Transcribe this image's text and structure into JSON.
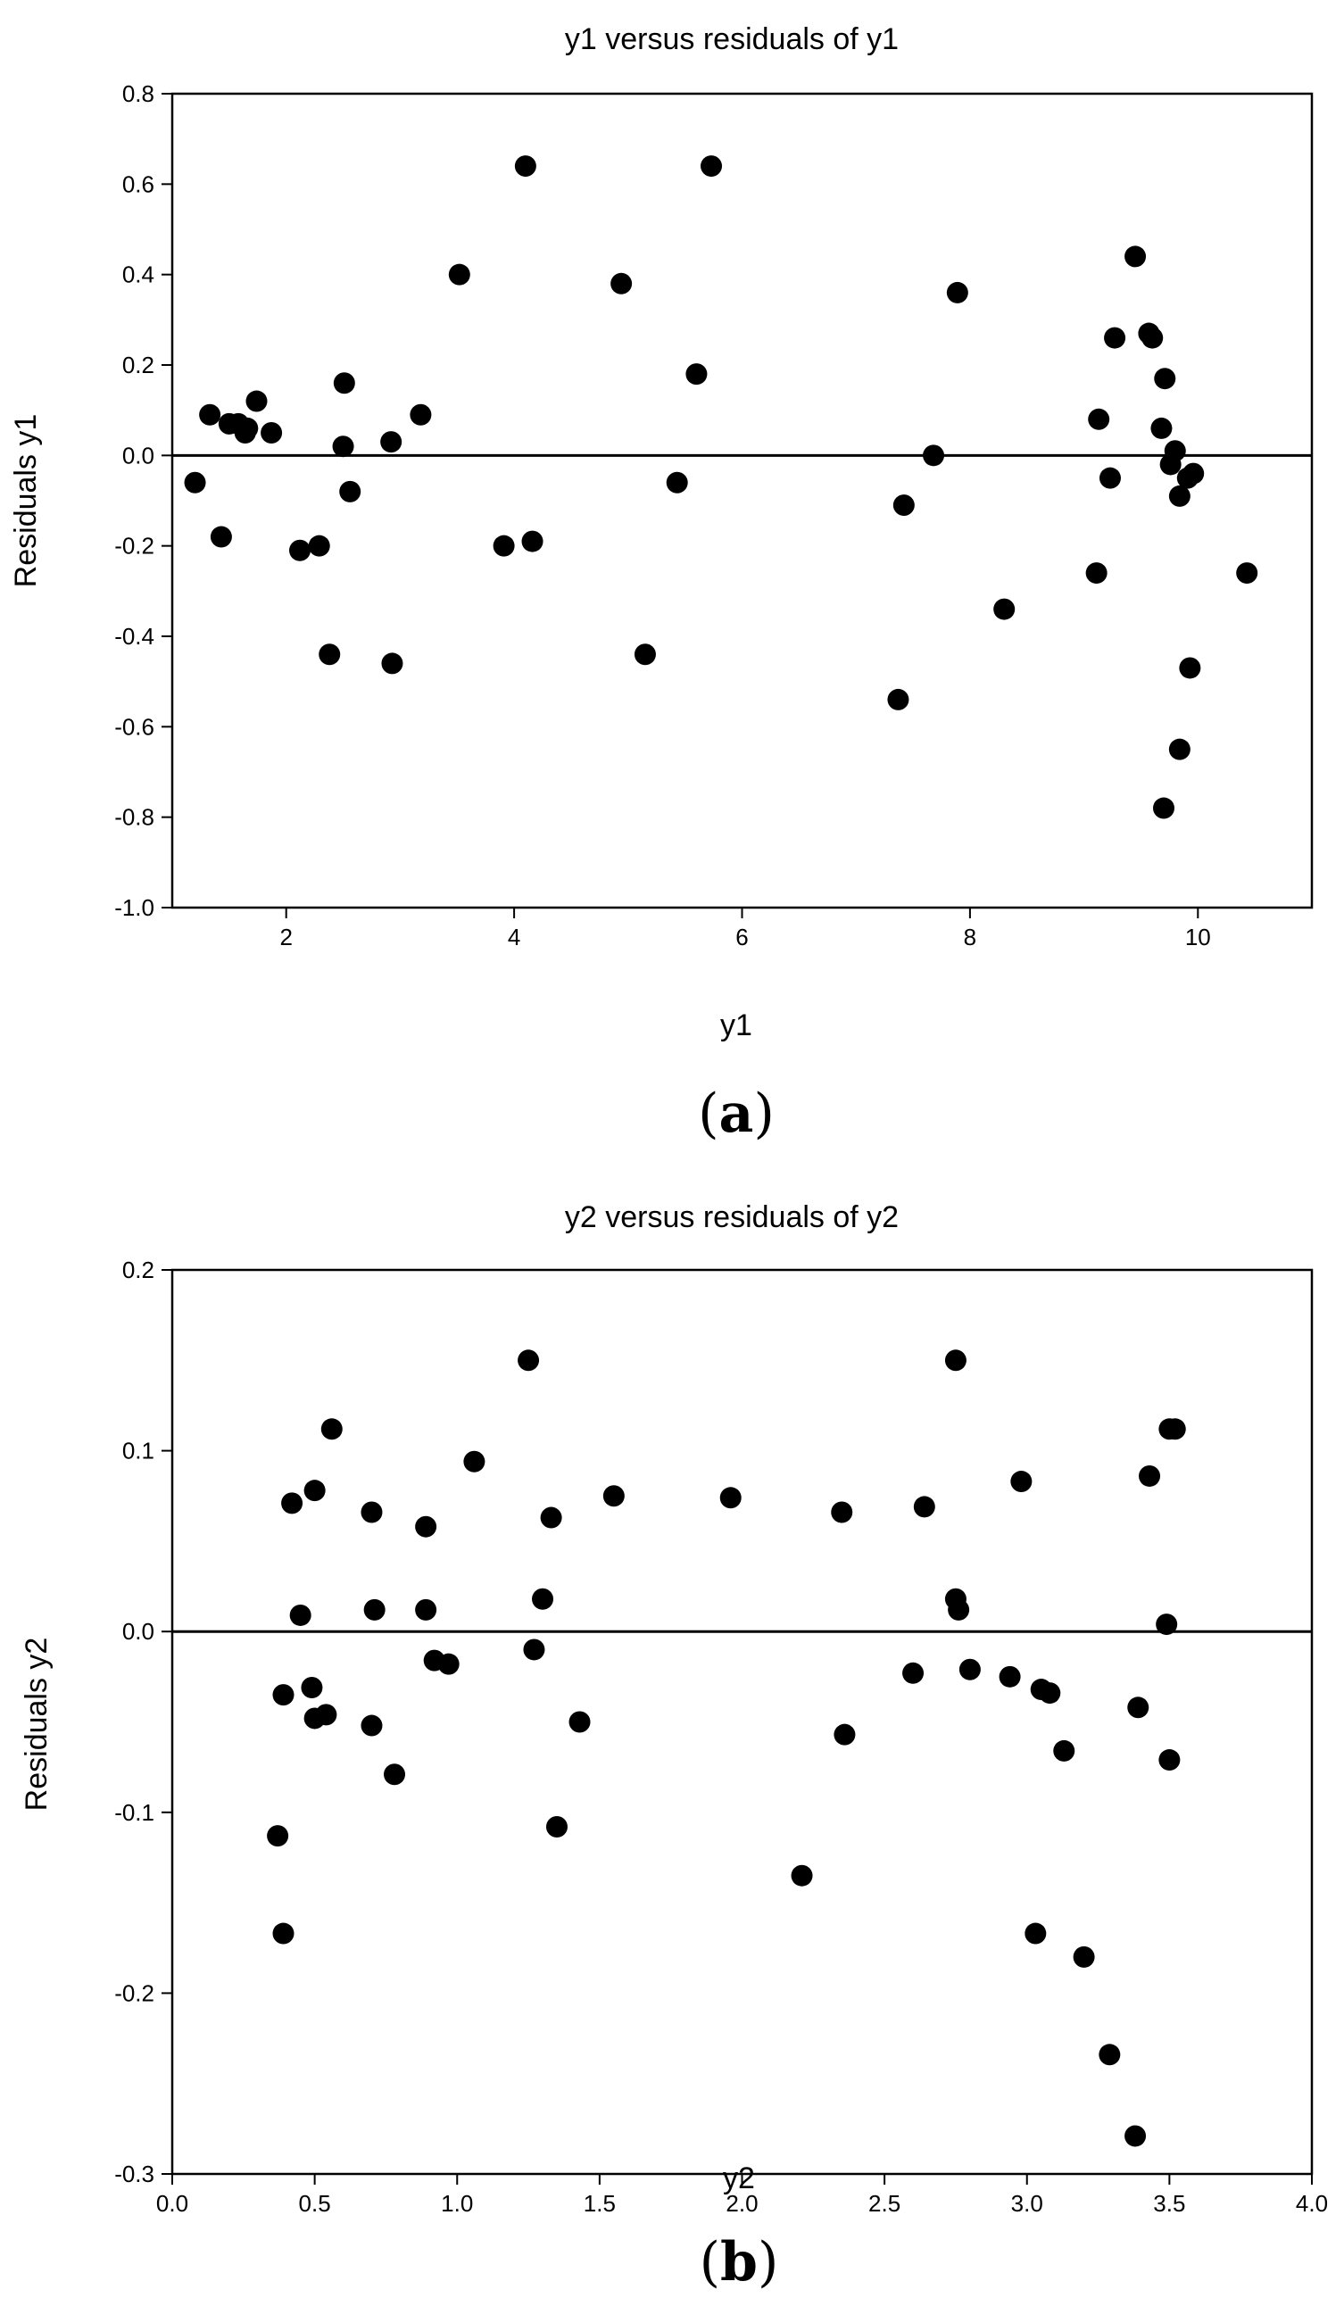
{
  "chart_data": [
    {
      "type": "scatter",
      "panel": "a",
      "title": "y1 versus residuals of y1",
      "xlabel": "y1",
      "ylabel": "Residuals y1",
      "xlim": [
        1,
        11
      ],
      "ylim": [
        -1.0,
        0.8
      ],
      "xticks": [
        2,
        4,
        6,
        8,
        10
      ],
      "xtick_labels": [
        "2",
        "4",
        "6",
        "8",
        "10"
      ],
      "yticks": [
        -1.0,
        -0.8,
        -0.6,
        -0.4,
        -0.2,
        0.0,
        0.2,
        0.4,
        0.6,
        0.8
      ],
      "ytick_labels": [
        "-1.0",
        "-0.8",
        "-0.6",
        "-0.4",
        "-0.2",
        "0.0",
        "0.2",
        "0.4",
        "0.6",
        "0.8"
      ],
      "reference_line": 0.0,
      "grid": false,
      "points": [
        {
          "x": 1.2,
          "y": -0.06
        },
        {
          "x": 1.33,
          "y": 0.09
        },
        {
          "x": 1.43,
          "y": -0.18
        },
        {
          "x": 1.5,
          "y": 0.07
        },
        {
          "x": 1.58,
          "y": 0.07
        },
        {
          "x": 1.64,
          "y": 0.05
        },
        {
          "x": 1.66,
          "y": 0.06
        },
        {
          "x": 1.74,
          "y": 0.12
        },
        {
          "x": 1.87,
          "y": 0.05
        },
        {
          "x": 2.12,
          "y": -0.21
        },
        {
          "x": 2.29,
          "y": -0.2
        },
        {
          "x": 2.38,
          "y": -0.44
        },
        {
          "x": 2.5,
          "y": 0.02
        },
        {
          "x": 2.51,
          "y": 0.16
        },
        {
          "x": 2.56,
          "y": -0.08
        },
        {
          "x": 2.92,
          "y": 0.03
        },
        {
          "x": 2.93,
          "y": -0.46
        },
        {
          "x": 3.18,
          "y": 0.09
        },
        {
          "x": 3.52,
          "y": 0.4
        },
        {
          "x": 3.91,
          "y": -0.2
        },
        {
          "x": 4.1,
          "y": 0.64
        },
        {
          "x": 4.16,
          "y": -0.19
        },
        {
          "x": 4.94,
          "y": 0.38
        },
        {
          "x": 5.15,
          "y": -0.44
        },
        {
          "x": 5.43,
          "y": -0.06
        },
        {
          "x": 5.6,
          "y": 0.18
        },
        {
          "x": 5.73,
          "y": 0.64
        },
        {
          "x": 7.37,
          "y": -0.54
        },
        {
          "x": 7.42,
          "y": -0.11
        },
        {
          "x": 7.68,
          "y": 0.0
        },
        {
          "x": 7.89,
          "y": 0.36
        },
        {
          "x": 8.3,
          "y": -0.34
        },
        {
          "x": 9.11,
          "y": -0.26
        },
        {
          "x": 9.13,
          "y": 0.08
        },
        {
          "x": 9.23,
          "y": -0.05
        },
        {
          "x": 9.27,
          "y": 0.26
        },
        {
          "x": 9.45,
          "y": 0.44
        },
        {
          "x": 9.57,
          "y": 0.27
        },
        {
          "x": 9.6,
          "y": 0.26
        },
        {
          "x": 9.68,
          "y": 0.06
        },
        {
          "x": 9.7,
          "y": -0.78
        },
        {
          "x": 9.71,
          "y": 0.17
        },
        {
          "x": 9.76,
          "y": -0.02
        },
        {
          "x": 9.8,
          "y": 0.01
        },
        {
          "x": 9.84,
          "y": -0.65
        },
        {
          "x": 9.84,
          "y": -0.09
        },
        {
          "x": 9.91,
          "y": -0.05
        },
        {
          "x": 9.93,
          "y": -0.47
        },
        {
          "x": 9.96,
          "y": -0.04
        },
        {
          "x": 10.43,
          "y": -0.26
        }
      ]
    },
    {
      "type": "scatter",
      "panel": "b",
      "title": "y2 versus residuals of y2",
      "xlabel": "y2",
      "ylabel": "Residuals y2",
      "xlim": [
        0.0,
        4.0
      ],
      "ylim": [
        -0.3,
        0.2
      ],
      "xticks": [
        0.0,
        0.5,
        1.0,
        1.5,
        2.0,
        2.5,
        3.0,
        3.5,
        4.0
      ],
      "xtick_labels": [
        "0.0",
        "0.5",
        "1.0",
        "1.5",
        "2.0",
        "2.5",
        "3.0",
        "3.5",
        "4.0"
      ],
      "yticks": [
        -0.3,
        -0.2,
        -0.1,
        0.0,
        0.1,
        0.2
      ],
      "ytick_labels": [
        "-0.3",
        "-0.2",
        "-0.1",
        "0.0",
        "0.1",
        "0.2"
      ],
      "reference_line": 0.0,
      "grid": false,
      "points": [
        {
          "x": 0.37,
          "y": -0.113
        },
        {
          "x": 0.39,
          "y": -0.035
        },
        {
          "x": 0.39,
          "y": -0.167
        },
        {
          "x": 0.42,
          "y": 0.071
        },
        {
          "x": 0.45,
          "y": 0.009
        },
        {
          "x": 0.49,
          "y": -0.031
        },
        {
          "x": 0.5,
          "y": 0.078
        },
        {
          "x": 0.5,
          "y": -0.048
        },
        {
          "x": 0.54,
          "y": -0.046
        },
        {
          "x": 0.56,
          "y": 0.112
        },
        {
          "x": 0.7,
          "y": 0.066
        },
        {
          "x": 0.7,
          "y": -0.052
        },
        {
          "x": 0.71,
          "y": 0.012
        },
        {
          "x": 0.78,
          "y": -0.079
        },
        {
          "x": 0.89,
          "y": 0.058
        },
        {
          "x": 0.89,
          "y": 0.012
        },
        {
          "x": 0.92,
          "y": -0.016
        },
        {
          "x": 0.97,
          "y": -0.018
        },
        {
          "x": 1.06,
          "y": 0.094
        },
        {
          "x": 1.25,
          "y": 0.15
        },
        {
          "x": 1.27,
          "y": -0.01
        },
        {
          "x": 1.3,
          "y": 0.018
        },
        {
          "x": 1.33,
          "y": 0.063
        },
        {
          "x": 1.35,
          "y": -0.108
        },
        {
          "x": 1.43,
          "y": -0.05
        },
        {
          "x": 1.55,
          "y": 0.075
        },
        {
          "x": 1.96,
          "y": 0.074
        },
        {
          "x": 2.21,
          "y": -0.135
        },
        {
          "x": 2.35,
          "y": 0.066
        },
        {
          "x": 2.36,
          "y": -0.057
        },
        {
          "x": 2.6,
          "y": -0.023
        },
        {
          "x": 2.64,
          "y": 0.069
        },
        {
          "x": 2.75,
          "y": 0.15
        },
        {
          "x": 2.75,
          "y": 0.018
        },
        {
          "x": 2.76,
          "y": 0.012
        },
        {
          "x": 2.8,
          "y": -0.021
        },
        {
          "x": 2.94,
          "y": -0.025
        },
        {
          "x": 2.98,
          "y": 0.083
        },
        {
          "x": 3.03,
          "y": -0.167
        },
        {
          "x": 3.05,
          "y": -0.032
        },
        {
          "x": 3.08,
          "y": -0.034
        },
        {
          "x": 3.13,
          "y": -0.066
        },
        {
          "x": 3.2,
          "y": -0.18
        },
        {
          "x": 3.29,
          "y": -0.234
        },
        {
          "x": 3.38,
          "y": -0.279
        },
        {
          "x": 3.39,
          "y": -0.042
        },
        {
          "x": 3.43,
          "y": 0.086
        },
        {
          "x": 3.49,
          "y": 0.004
        },
        {
          "x": 3.5,
          "y": -0.071
        },
        {
          "x": 3.5,
          "y": 0.112
        },
        {
          "x": 3.52,
          "y": 0.112
        }
      ]
    }
  ],
  "panel_labels": {
    "a": {
      "open": "(",
      "letter": "a",
      "close": ")"
    },
    "b": {
      "open": "(",
      "letter": "b",
      "close": ")"
    }
  }
}
